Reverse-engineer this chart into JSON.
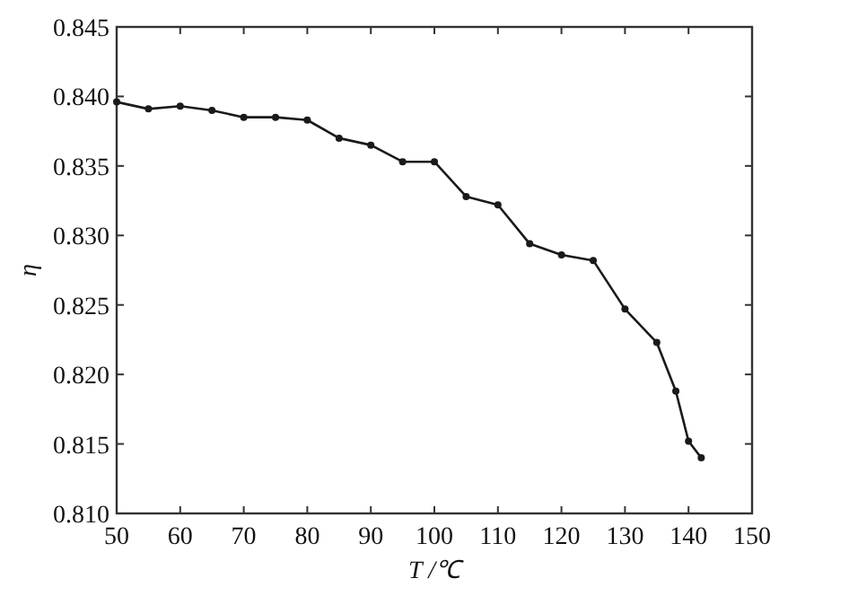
{
  "chart_data": {
    "type": "line",
    "xlabel": "T /℃",
    "ylabel": "η",
    "marker": "circle",
    "line_style": "solid",
    "grid": false,
    "x": [
      50,
      55,
      60,
      65,
      70,
      75,
      80,
      85,
      90,
      95,
      100,
      105,
      110,
      115,
      120,
      125,
      130,
      135,
      138,
      140,
      142
    ],
    "series": [
      {
        "color": "#1a1a1a",
        "values": [
          0.8396,
          0.8391,
          0.8393,
          0.839,
          0.8385,
          0.8385,
          0.8383,
          0.837,
          0.8365,
          0.8353,
          0.8353,
          0.8328,
          0.8322,
          0.8294,
          0.8286,
          0.8282,
          0.8247,
          0.8223,
          0.8188,
          0.8152,
          0.814
        ]
      }
    ],
    "xlim": [
      50,
      150
    ],
    "xticks": [
      50,
      60,
      70,
      80,
      90,
      100,
      110,
      120,
      130,
      140,
      150
    ],
    "ylim": [
      0.81,
      0.845
    ],
    "yticks": [
      {
        "value": 0.81,
        "label": "0.810"
      },
      {
        "value": 0.815,
        "label": "0.815"
      },
      {
        "value": 0.82,
        "label": "0.820"
      },
      {
        "value": 0.825,
        "label": "0.825"
      },
      {
        "value": 0.83,
        "label": "0.830"
      },
      {
        "value": 0.835,
        "label": "0.835"
      },
      {
        "value": 0.84,
        "label": "0.840"
      },
      {
        "value": 0.845,
        "label": "0.845"
      }
    ]
  }
}
